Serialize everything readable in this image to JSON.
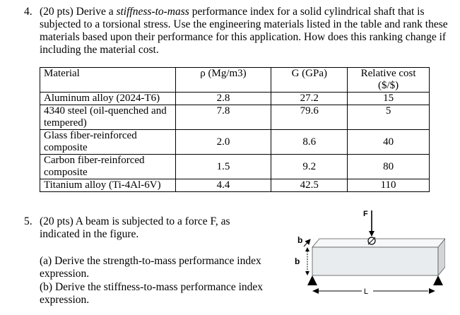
{
  "q4": {
    "number": "4.",
    "text_before": "(20 pts) Derive a ",
    "text_italic": "stiffness-to-mass",
    "text_after": " performance index for a solid cylindrical shaft that is subjected to a torsional stress. Use the engineering materials listed in the table and rank these materials based upon their performance for this application. How does this ranking change if including the material cost."
  },
  "table": {
    "headers": [
      "Material",
      "ρ (Mg/m3)",
      "G (GPa)",
      "Relative cost ($/$)"
    ],
    "rows": [
      {
        "material": "Aluminum alloy (2024-T6)",
        "rho": "2.8",
        "G": "27.2",
        "cost": "15"
      },
      {
        "material": "4340 steel (oil-quenched and tempered)",
        "rho": "7.8",
        "G": "79.6",
        "cost": "5"
      },
      {
        "material": "Glass fiber-reinforced composite",
        "rho": "2.0",
        "G": "8.6",
        "cost": "40"
      },
      {
        "material": "Carbon fiber-reinforced composite",
        "rho": "1.5",
        "G": "9.2",
        "cost": "80"
      },
      {
        "material": "Titanium alloy (Ti-4Al-6V)",
        "rho": "4.4",
        "G": "42.5",
        "cost": "110"
      }
    ]
  },
  "q5": {
    "number": "5.",
    "text": "(20 pts) A beam is subjected to a force F, as indicated in the figure.",
    "part_a": "(a) Derive the strength-to-mass performance index expression.",
    "part_b": "(b) Derive the stiffness-to-mass performance index expression."
  },
  "figure": {
    "force_label": "F",
    "width_label": "b",
    "height_label": "b",
    "length_label": "L",
    "beam_color": "#e9ecee",
    "beam_top_color": "#f6f7f8",
    "beam_side_color": "#d2d6d9"
  }
}
